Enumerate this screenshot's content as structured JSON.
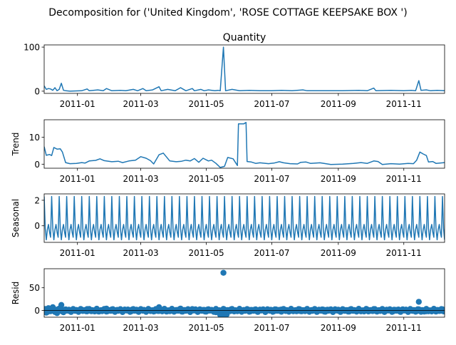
{
  "figure": {
    "suptitle": "Decomposition for ('United Kingdom', 'ROSE COTTAGE KEEPSAKE BOX ')",
    "line_color": "#1f77b4"
  },
  "chart_data": [
    {
      "type": "line",
      "title": "Quantity",
      "ylabel": "",
      "x_range": [
        "2011-12-01",
        "2011-12-09"
      ],
      "ylim": [
        -5,
        105
      ],
      "yticks": [
        0,
        100
      ],
      "xticks": [
        "2011-01",
        "2011-03",
        "2011-05",
        "2011-07",
        "2011-09",
        "2011-11"
      ],
      "points": [
        [
          "2010-12-01",
          12
        ],
        [
          "2010-12-03",
          4
        ],
        [
          "2010-12-05",
          6
        ],
        [
          "2010-12-07",
          5
        ],
        [
          "2010-12-09",
          2
        ],
        [
          "2010-12-11",
          8
        ],
        [
          "2010-12-13",
          1
        ],
        [
          "2010-12-15",
          4
        ],
        [
          "2010-12-17",
          18
        ],
        [
          "2010-12-19",
          2
        ],
        [
          "2010-12-21",
          1
        ],
        [
          "2010-12-25",
          0
        ],
        [
          "2011-01-05",
          1
        ],
        [
          "2011-01-10",
          5
        ],
        [
          "2011-01-12",
          1
        ],
        [
          "2011-01-20",
          3
        ],
        [
          "2011-01-25",
          1
        ],
        [
          "2011-01-28",
          6
        ],
        [
          "2011-02-02",
          1
        ],
        [
          "2011-02-10",
          2
        ],
        [
          "2011-02-15",
          1
        ],
        [
          "2011-02-22",
          4
        ],
        [
          "2011-02-26",
          1
        ],
        [
          "2011-03-03",
          6
        ],
        [
          "2011-03-06",
          1
        ],
        [
          "2011-03-12",
          3
        ],
        [
          "2011-03-18",
          10
        ],
        [
          "2011-03-20",
          1
        ],
        [
          "2011-03-26",
          4
        ],
        [
          "2011-04-02",
          1
        ],
        [
          "2011-04-07",
          8
        ],
        [
          "2011-04-12",
          1
        ],
        [
          "2011-04-18",
          6
        ],
        [
          "2011-04-20",
          1
        ],
        [
          "2011-04-26",
          4
        ],
        [
          "2011-04-29",
          1
        ],
        [
          "2011-05-03",
          3
        ],
        [
          "2011-05-09",
          1
        ],
        [
          "2011-05-12",
          2
        ],
        [
          "2011-05-14",
          1
        ],
        [
          "2011-05-17",
          100
        ],
        [
          "2011-05-19",
          1
        ],
        [
          "2011-05-25",
          4
        ],
        [
          "2011-06-01",
          1
        ],
        [
          "2011-06-10",
          2
        ],
        [
          "2011-06-20",
          1
        ],
        [
          "2011-07-01",
          1
        ],
        [
          "2011-07-10",
          2
        ],
        [
          "2011-07-20",
          1
        ],
        [
          "2011-07-30",
          3
        ],
        [
          "2011-08-03",
          1
        ],
        [
          "2011-08-20",
          1
        ],
        [
          "2011-09-05",
          1
        ],
        [
          "2011-09-20",
          2
        ],
        [
          "2011-09-28",
          1
        ],
        [
          "2011-10-04",
          7
        ],
        [
          "2011-10-06",
          1
        ],
        [
          "2011-10-20",
          2
        ],
        [
          "2011-11-01",
          1
        ],
        [
          "2011-11-08",
          2
        ],
        [
          "2011-11-12",
          1
        ],
        [
          "2011-11-15",
          24
        ],
        [
          "2011-11-17",
          2
        ],
        [
          "2011-11-22",
          3
        ],
        [
          "2011-11-26",
          1
        ],
        [
          "2011-12-02",
          2
        ],
        [
          "2011-12-09",
          1
        ]
      ]
    },
    {
      "type": "line",
      "title": "",
      "ylabel": "Trend",
      "x_range": [
        "2011-12-01",
        "2011-12-09"
      ],
      "ylim": [
        -1.5,
        16.5
      ],
      "yticks": [
        0,
        10
      ],
      "xticks": [
        "2011-01",
        "2011-03",
        "2011-05",
        "2011-07",
        "2011-09",
        "2011-11"
      ],
      "points": [
        [
          "2010-12-01",
          6.5
        ],
        [
          "2010-12-03",
          3.3
        ],
        [
          "2010-12-06",
          3.6
        ],
        [
          "2010-12-08",
          3.2
        ],
        [
          "2010-12-10",
          6.2
        ],
        [
          "2010-12-13",
          5.6
        ],
        [
          "2010-12-16",
          5.7
        ],
        [
          "2010-12-18",
          4.5
        ],
        [
          "2010-12-21",
          0.6
        ],
        [
          "2010-12-25",
          0.2
        ],
        [
          "2010-12-31",
          0.3
        ],
        [
          "2011-01-05",
          0.6
        ],
        [
          "2011-01-08",
          0.4
        ],
        [
          "2011-01-12",
          1.2
        ],
        [
          "2011-01-18",
          1.4
        ],
        [
          "2011-01-22",
          2.0
        ],
        [
          "2011-01-26",
          1.3
        ],
        [
          "2011-02-02",
          0.9
        ],
        [
          "2011-02-08",
          1.1
        ],
        [
          "2011-02-12",
          0.6
        ],
        [
          "2011-02-18",
          1.2
        ],
        [
          "2011-02-24",
          1.5
        ],
        [
          "2011-03-01",
          2.8
        ],
        [
          "2011-03-06",
          2.2
        ],
        [
          "2011-03-10",
          1.3
        ],
        [
          "2011-03-13",
          0.1
        ],
        [
          "2011-03-18",
          3.5
        ],
        [
          "2011-03-22",
          4.1
        ],
        [
          "2011-03-28",
          1.2
        ],
        [
          "2011-04-03",
          0.9
        ],
        [
          "2011-04-08",
          1.1
        ],
        [
          "2011-04-12",
          1.5
        ],
        [
          "2011-04-16",
          1.2
        ],
        [
          "2011-04-20",
          2.1
        ],
        [
          "2011-04-24",
          0.7
        ],
        [
          "2011-04-28",
          2.2
        ],
        [
          "2011-05-03",
          1.2
        ],
        [
          "2011-05-06",
          1.5
        ],
        [
          "2011-05-10",
          0.3
        ],
        [
          "2011-05-14",
          -1.2
        ],
        [
          "2011-05-18",
          -0.8
        ],
        [
          "2011-05-21",
          2.5
        ],
        [
          "2011-05-26",
          2.0
        ],
        [
          "2011-05-30",
          -0.5
        ],
        [
          "2011-05-31",
          15.0
        ],
        [
          "2011-06-05",
          15.0
        ],
        [
          "2011-06-07",
          15.5
        ],
        [
          "2011-06-08",
          1.0
        ],
        [
          "2011-06-12",
          0.8
        ],
        [
          "2011-06-16",
          0.3
        ],
        [
          "2011-06-20",
          0.5
        ],
        [
          "2011-06-28",
          0.2
        ],
        [
          "2011-07-03",
          0.4
        ],
        [
          "2011-07-08",
          0.9
        ],
        [
          "2011-07-12",
          0.5
        ],
        [
          "2011-07-18",
          0.2
        ],
        [
          "2011-07-25",
          0.1
        ],
        [
          "2011-07-28",
          0.7
        ],
        [
          "2011-08-02",
          0.8
        ],
        [
          "2011-08-06",
          0.3
        ],
        [
          "2011-08-15",
          0.5
        ],
        [
          "2011-08-25",
          -0.1
        ],
        [
          "2011-09-05",
          0.0
        ],
        [
          "2011-09-15",
          0.3
        ],
        [
          "2011-09-22",
          0.6
        ],
        [
          "2011-09-28",
          0.3
        ],
        [
          "2011-10-04",
          1.2
        ],
        [
          "2011-10-08",
          1.0
        ],
        [
          "2011-10-12",
          -0.1
        ],
        [
          "2011-10-20",
          0.2
        ],
        [
          "2011-10-28",
          0.0
        ],
        [
          "2011-11-05",
          0.3
        ],
        [
          "2011-11-10",
          0.2
        ],
        [
          "2011-11-13",
          1.5
        ],
        [
          "2011-11-16",
          4.5
        ],
        [
          "2011-11-19",
          3.8
        ],
        [
          "2011-11-22",
          3.2
        ],
        [
          "2011-11-24",
          0.8
        ],
        [
          "2011-11-28",
          1.0
        ],
        [
          "2011-12-01",
          0.3
        ],
        [
          "2011-12-09",
          0.6
        ]
      ]
    },
    {
      "type": "line",
      "title": "",
      "ylabel": "Seasonal",
      "x_range": [
        "2011-12-01",
        "2011-12-09"
      ],
      "ylim": [
        -1.3,
        2.5
      ],
      "yticks": [
        0,
        2
      ],
      "xticks": [
        "2011-01",
        "2011-03",
        "2011-05",
        "2011-07",
        "2011-09",
        "2011-11"
      ],
      "period_days": 7,
      "weekly_pattern": [
        2.3,
        -0.2,
        -1.1,
        -0.3,
        0.1,
        -0.5,
        -0.9
      ]
    },
    {
      "type": "scatter",
      "title": "",
      "ylabel": "Resid",
      "x_range": [
        "2011-12-01",
        "2011-12-09"
      ],
      "ylim": [
        -15,
        92
      ],
      "yticks": [
        0,
        50
      ],
      "xticks": [
        "2011-01",
        "2011-03",
        "2011-05",
        "2011-07",
        "2011-09",
        "2011-11"
      ],
      "points": [
        [
          "2010-12-01",
          3
        ],
        [
          "2010-12-03",
          -5
        ],
        [
          "2010-12-05",
          5
        ],
        [
          "2010-12-07",
          -2
        ],
        [
          "2010-12-09",
          7
        ],
        [
          "2010-12-11",
          -3
        ],
        [
          "2010-12-13",
          -6
        ],
        [
          "2010-12-15",
          4
        ],
        [
          "2010-12-17",
          12
        ],
        [
          "2010-12-19",
          -4
        ],
        [
          "2010-12-21",
          2
        ],
        [
          "2010-12-24",
          -1
        ],
        [
          "2011-01-03",
          1
        ],
        [
          "2011-01-10",
          3
        ],
        [
          "2011-01-20",
          -2
        ],
        [
          "2011-01-28",
          4
        ],
        [
          "2011-02-10",
          1
        ],
        [
          "2011-02-22",
          3
        ],
        [
          "2011-03-05",
          -1
        ],
        [
          "2011-03-18",
          7
        ],
        [
          "2011-04-07",
          4
        ],
        [
          "2011-04-18",
          3
        ],
        [
          "2011-05-03",
          2
        ],
        [
          "2011-05-10",
          -4
        ],
        [
          "2011-05-14",
          -10
        ],
        [
          "2011-05-15",
          -11
        ],
        [
          "2011-05-17",
          83
        ],
        [
          "2011-05-19",
          -9
        ],
        [
          "2011-05-20",
          -9
        ],
        [
          "2011-05-25",
          2
        ],
        [
          "2011-06-10",
          1
        ],
        [
          "2011-07-10",
          2
        ],
        [
          "2011-08-03",
          0
        ],
        [
          "2011-09-20",
          1
        ],
        [
          "2011-10-04",
          3
        ],
        [
          "2011-11-10",
          -1
        ],
        [
          "2011-11-15",
          19
        ],
        [
          "2011-11-17",
          -3
        ],
        [
          "2011-11-22",
          -2
        ],
        [
          "2011-12-02",
          1
        ],
        [
          "2011-12-08",
          -1
        ]
      ]
    }
  ]
}
